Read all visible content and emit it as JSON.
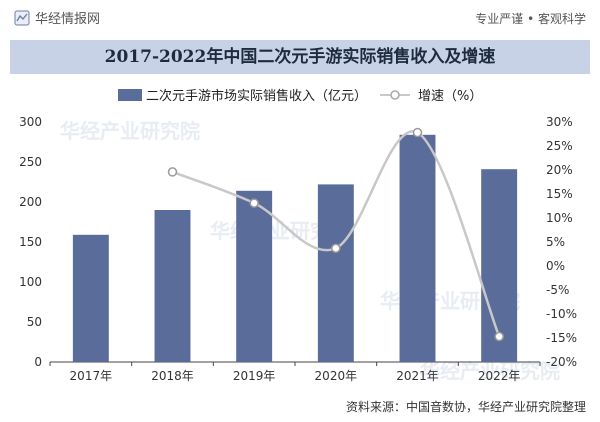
{
  "header": {
    "brand": "华经情报网",
    "tagline": "专业严谨 • 客观科学"
  },
  "chart_data": {
    "type": "bar+line",
    "title": "2017-2022年中国二次元手游实际销售收入及增速",
    "categories": [
      "2017年",
      "2018年",
      "2019年",
      "2020年",
      "2021年",
      "2022年"
    ],
    "series": [
      {
        "name": "二次元手游市场实际销售收入（亿元）",
        "type": "bar",
        "axis": "left",
        "color": "#5a6c99",
        "values": [
          159,
          190,
          214,
          222,
          284,
          241
        ]
      },
      {
        "name": "增速（%）",
        "type": "line",
        "axis": "right",
        "color": "#c8c8c8",
        "values": [
          null,
          19.6,
          13.1,
          3.7,
          27.8,
          -14.7
        ]
      }
    ],
    "y_left": {
      "min": 0,
      "max": 300,
      "ticks": [
        0,
        50,
        100,
        150,
        200,
        250,
        300
      ]
    },
    "y_right": {
      "min": -20,
      "max": 30,
      "ticks": [
        -20,
        -15,
        -10,
        -5,
        0,
        5,
        10,
        15,
        20,
        25,
        30
      ],
      "unit": "%"
    },
    "grid": false,
    "legend": "top"
  },
  "watermark": "华经产业研究院",
  "footer": {
    "source": "资料来源：中国音数协，华经产业研究院整理"
  }
}
